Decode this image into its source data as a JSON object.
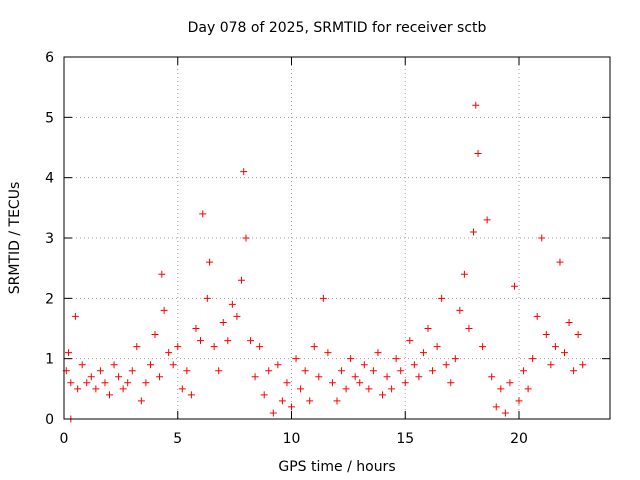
{
  "chart_data": {
    "type": "scatter",
    "title": "Day 078 of 2025, SRMTID for receiver sctb",
    "xlabel": "GPS time / hours",
    "ylabel": "SRMTID / TECUs",
    "xlim": [
      0,
      24
    ],
    "ylim": [
      0,
      6
    ],
    "xticks": [
      0,
      5,
      10,
      15,
      20
    ],
    "yticks": [
      0,
      1,
      2,
      3,
      4,
      5,
      6
    ],
    "grid": true,
    "marker": "+",
    "color": "#ff0000",
    "series": [
      {
        "name": "SRMTID",
        "x": [
          0.1,
          0.2,
          0.3,
          0.3,
          0.5,
          0.6,
          0.8,
          1.0,
          1.2,
          1.4,
          1.6,
          1.8,
          2.0,
          2.2,
          2.4,
          2.6,
          2.8,
          3.0,
          3.2,
          3.4,
          3.6,
          3.8,
          4.0,
          4.2,
          4.3,
          4.4,
          4.6,
          4.8,
          5.0,
          5.2,
          5.4,
          5.6,
          5.8,
          6.0,
          6.1,
          6.3,
          6.4,
          6.6,
          6.8,
          7.0,
          7.2,
          7.4,
          7.6,
          7.8,
          7.9,
          8.0,
          8.2,
          8.4,
          8.6,
          8.8,
          9.0,
          9.2,
          9.4,
          9.6,
          9.8,
          10.0,
          10.2,
          10.4,
          10.6,
          10.8,
          11.0,
          11.2,
          11.4,
          11.6,
          11.8,
          12.0,
          12.2,
          12.4,
          12.6,
          12.8,
          13.0,
          13.2,
          13.4,
          13.6,
          13.8,
          14.0,
          14.2,
          14.4,
          14.6,
          14.8,
          15.0,
          15.2,
          15.4,
          15.6,
          15.8,
          16.0,
          16.2,
          16.4,
          16.6,
          16.8,
          17.0,
          17.2,
          17.4,
          17.6,
          17.8,
          18.0,
          18.1,
          18.2,
          18.4,
          18.6,
          18.8,
          19.0,
          19.2,
          19.4,
          19.6,
          19.8,
          20.0,
          20.2,
          20.4,
          20.6,
          20.8,
          21.0,
          21.2,
          21.4,
          21.6,
          21.8,
          22.0,
          22.2,
          22.4,
          22.6,
          22.8
        ],
        "y": [
          0.8,
          1.1,
          0.0,
          0.6,
          1.7,
          0.5,
          0.9,
          0.6,
          0.7,
          0.5,
          0.8,
          0.6,
          0.4,
          0.9,
          0.7,
          0.5,
          0.6,
          0.8,
          1.2,
          0.3,
          0.6,
          0.9,
          1.4,
          0.7,
          2.4,
          1.8,
          1.1,
          0.9,
          1.2,
          0.5,
          0.8,
          0.4,
          1.5,
          1.3,
          3.4,
          2.0,
          2.6,
          1.2,
          0.8,
          1.6,
          1.3,
          1.9,
          1.7,
          2.3,
          4.1,
          3.0,
          1.3,
          0.7,
          1.2,
          0.4,
          0.8,
          0.1,
          0.9,
          0.3,
          0.6,
          0.2,
          1.0,
          0.5,
          0.8,
          0.3,
          1.2,
          0.7,
          2.0,
          1.1,
          0.6,
          0.3,
          0.8,
          0.5,
          1.0,
          0.7,
          0.6,
          0.9,
          0.5,
          0.8,
          1.1,
          0.4,
          0.7,
          0.5,
          1.0,
          0.8,
          0.6,
          1.3,
          0.9,
          0.7,
          1.1,
          1.5,
          0.8,
          1.2,
          2.0,
          0.9,
          0.6,
          1.0,
          1.8,
          2.4,
          1.5,
          3.1,
          5.2,
          4.4,
          1.2,
          3.3,
          0.7,
          0.2,
          0.5,
          0.1,
          0.6,
          2.2,
          0.3,
          0.8,
          0.5,
          1.0,
          1.7,
          3.0,
          1.4,
          0.9,
          1.2,
          2.6,
          1.1,
          1.6,
          0.8,
          1.4,
          0.9
        ]
      }
    ]
  }
}
